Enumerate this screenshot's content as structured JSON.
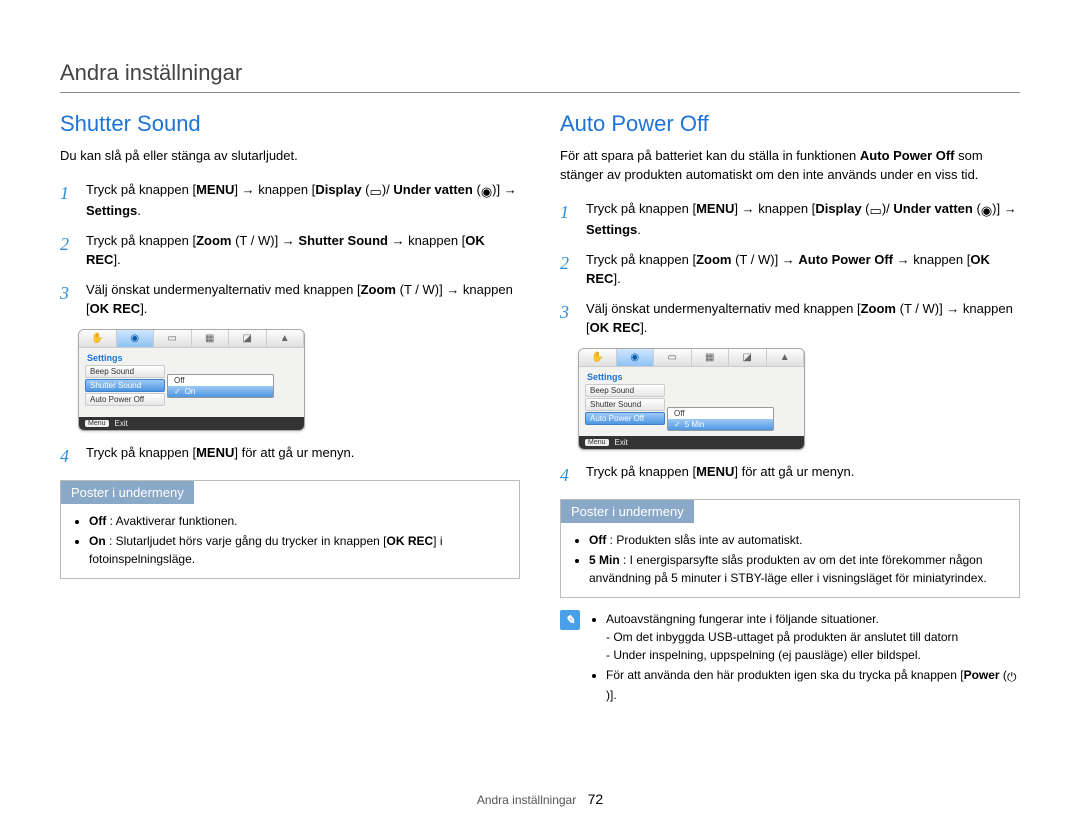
{
  "page_title": "Andra inställningar",
  "footer": {
    "label": "Andra inställningar",
    "page": "72"
  },
  "icons": {
    "display": "▭",
    "underwater": "◉",
    "power": "⏻",
    "check": "✓"
  },
  "left": {
    "title": "Shutter Sound",
    "intro": "Du kan slå på eller stänga av slutarljudet.",
    "s1": {
      "a": "Tryck på knappen [",
      "menu": "MENU",
      "b": "] → knappen [",
      "disp": "Display",
      "c": " (",
      "d": ")/",
      "uw": "Under vatten",
      "e": " (",
      "f": ")] → ",
      "set": "Settings",
      "g": "."
    },
    "s2": {
      "a": "Tryck på knappen [",
      "zoom": "Zoom",
      "tw": " (T / W)",
      "b": "] → ",
      "item": "Shutter Sound",
      "c": " → knappen [",
      "ok": "OK REC",
      "d": "]."
    },
    "s3": {
      "a": "Välj önskat undermenyalternativ med knappen [",
      "zoom": "Zoom",
      "tw": " (T / W)",
      "b": "] → knappen [",
      "ok": "OK REC",
      "c": "]."
    },
    "lcd": {
      "heading": "Settings",
      "r1": "Beep Sound",
      "r2": "Shutter Sound",
      "r3": "Auto Power Off",
      "opt_off": "Off",
      "opt_on": "On",
      "exit_btn": "Menu",
      "exit": "Exit"
    },
    "s4": {
      "a": "Tryck på knappen [",
      "menu": "MENU",
      "b": "] för att gå ur menyn."
    },
    "box": {
      "head": "Poster i undermeny",
      "off_t": "Off",
      "off": " : Avaktiverar funktionen.",
      "on_t": "On",
      "on": " : Slutarljudet hörs varje gång du trycker in knappen [",
      "ok": "OK REC",
      "on2": "] i fotoinspelningsläge."
    }
  },
  "right": {
    "title": "Auto Power Off",
    "intro_a": "För att spara på batteriet kan du ställa in funktionen ",
    "intro_b": "Auto Power Off",
    "intro_c": " som stänger av produkten automatiskt om den inte används under en viss tid.",
    "s1": {
      "a": "Tryck på knappen [",
      "menu": "MENU",
      "b": "] → knappen [",
      "disp": "Display",
      "c": " (",
      "d": ")/",
      "uw": "Under vatten",
      "e": " (",
      "f": ")] → ",
      "set": "Settings",
      "g": "."
    },
    "s2": {
      "a": "Tryck på knappen [",
      "zoom": "Zoom",
      "tw": " (T / W)",
      "b": "] → ",
      "item": "Auto Power Off",
      "c": " → knappen [",
      "ok": "OK REC",
      "d": "]."
    },
    "s3": {
      "a": "Välj önskat undermenyalternativ med knappen [",
      "zoom": "Zoom",
      "tw": " (T / W)",
      "b": "] → knappen [",
      "ok": "OK REC",
      "c": "]."
    },
    "lcd": {
      "heading": "Settings",
      "r1": "Beep Sound",
      "r2": "Shutter Sound",
      "r3": "Auto Power Off",
      "opt_off": "Off",
      "opt_on": "5 Min",
      "exit_btn": "Menu",
      "exit": "Exit"
    },
    "s4": {
      "a": "Tryck på knappen [",
      "menu": "MENU",
      "b": "] för att gå ur menyn."
    },
    "box": {
      "head": "Poster i undermeny",
      "off_t": "Off",
      "off": " : Produkten slås inte av automatiskt.",
      "on_t": "5 Min",
      "on": " : I energisparsyfte slås produkten av om det inte förekommer någon användning på 5 minuter i STBY-läge eller i visningsläget för miniatyrindex."
    },
    "note": {
      "l1": "Autoavstängning fungerar inte i följande situationer.",
      "l1a": "- Om det inbyggda USB-uttaget på produkten är anslutet till datorn",
      "l1b": "- Under inspelning, uppspelning (ej pausläge) eller bildspel.",
      "l2a": "För att använda den här produkten igen ska du trycka på knappen [",
      "l2b": "Power",
      "l2c": " (",
      "l2d": ")]."
    }
  }
}
